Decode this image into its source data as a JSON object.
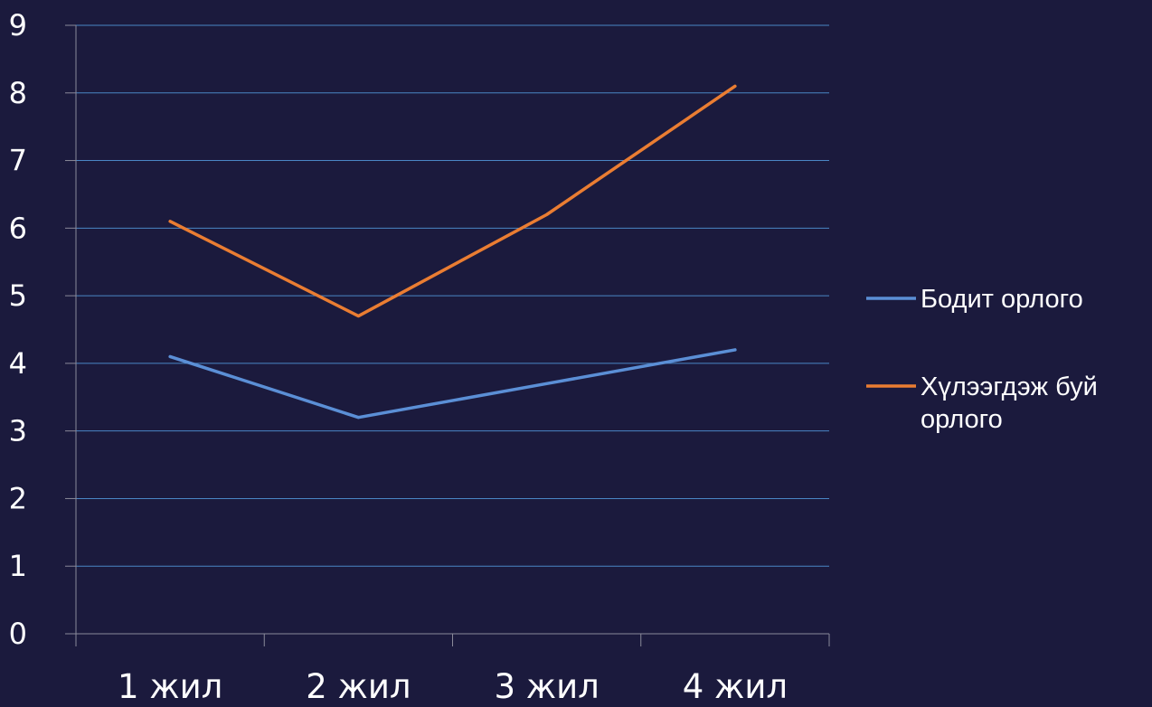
{
  "chart_data": {
    "type": "line",
    "categories": [
      "1 жил",
      "2 жил",
      "3 жил",
      "4 жил"
    ],
    "series": [
      {
        "name": "Бодит орлого",
        "values": [
          4.1,
          3.2,
          3.7,
          4.2
        ],
        "color": "#5b8fd6"
      },
      {
        "name": "Хүлээгдэж буй орлого",
        "values": [
          6.1,
          4.7,
          6.2,
          8.1
        ],
        "color": "#ea7d32"
      }
    ],
    "ylim": [
      0,
      9
    ],
    "yticks": [
      0,
      1,
      2,
      3,
      4,
      5,
      6,
      7,
      8,
      9
    ],
    "grid": true,
    "legend_position": "right",
    "colors": {
      "background": "#1b1a3d",
      "gridline": "#4a86c5",
      "axis": "#8a8a9a",
      "text": "#ffffff"
    }
  }
}
